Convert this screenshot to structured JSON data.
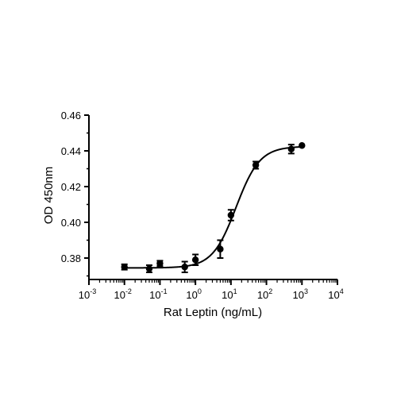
{
  "chart_data": {
    "type": "scatter",
    "xlabel": "Rat Leptin (ng/mL)",
    "ylabel": "OD 450nm",
    "xscale": "log",
    "xlim": [
      0.001,
      10000
    ],
    "ylim": [
      0.368,
      0.46
    ],
    "x_ticks": [
      {
        "value": 0.001,
        "base": "10",
        "exp": "-3"
      },
      {
        "value": 0.01,
        "base": "10",
        "exp": "-2"
      },
      {
        "value": 0.1,
        "base": "10",
        "exp": "-1"
      },
      {
        "value": 1,
        "base": "10",
        "exp": "0"
      },
      {
        "value": 10,
        "base": "10",
        "exp": "1"
      },
      {
        "value": 100,
        "base": "10",
        "exp": "2"
      },
      {
        "value": 1000,
        "base": "10",
        "exp": "3"
      },
      {
        "value": 10000,
        "base": "10",
        "exp": "4"
      }
    ],
    "y_ticks": [
      {
        "value": 0.38,
        "label": "0.38"
      },
      {
        "value": 0.4,
        "label": "0.40"
      },
      {
        "value": 0.42,
        "label": "0.42"
      },
      {
        "value": 0.44,
        "label": "0.44"
      },
      {
        "value": 0.46,
        "label": "0.46"
      }
    ],
    "points": [
      {
        "x": 0.01,
        "y": 0.375,
        "err": 0.0015
      },
      {
        "x": 0.05,
        "y": 0.374,
        "err": 0.002
      },
      {
        "x": 0.1,
        "y": 0.377,
        "err": 0.0015
      },
      {
        "x": 0.5,
        "y": 0.375,
        "err": 0.003
      },
      {
        "x": 1,
        "y": 0.379,
        "err": 0.003
      },
      {
        "x": 5,
        "y": 0.385,
        "err": 0.005
      },
      {
        "x": 10,
        "y": 0.404,
        "err": 0.003
      },
      {
        "x": 50,
        "y": 0.432,
        "err": 0.002
      },
      {
        "x": 500,
        "y": 0.441,
        "err": 0.0025
      },
      {
        "x": 1000,
        "y": 0.443,
        "err": 0
      }
    ],
    "fit": {
      "bottom": 0.3745,
      "top": 0.4425,
      "ec50": 14,
      "hill": 1.3
    },
    "grid": false
  }
}
